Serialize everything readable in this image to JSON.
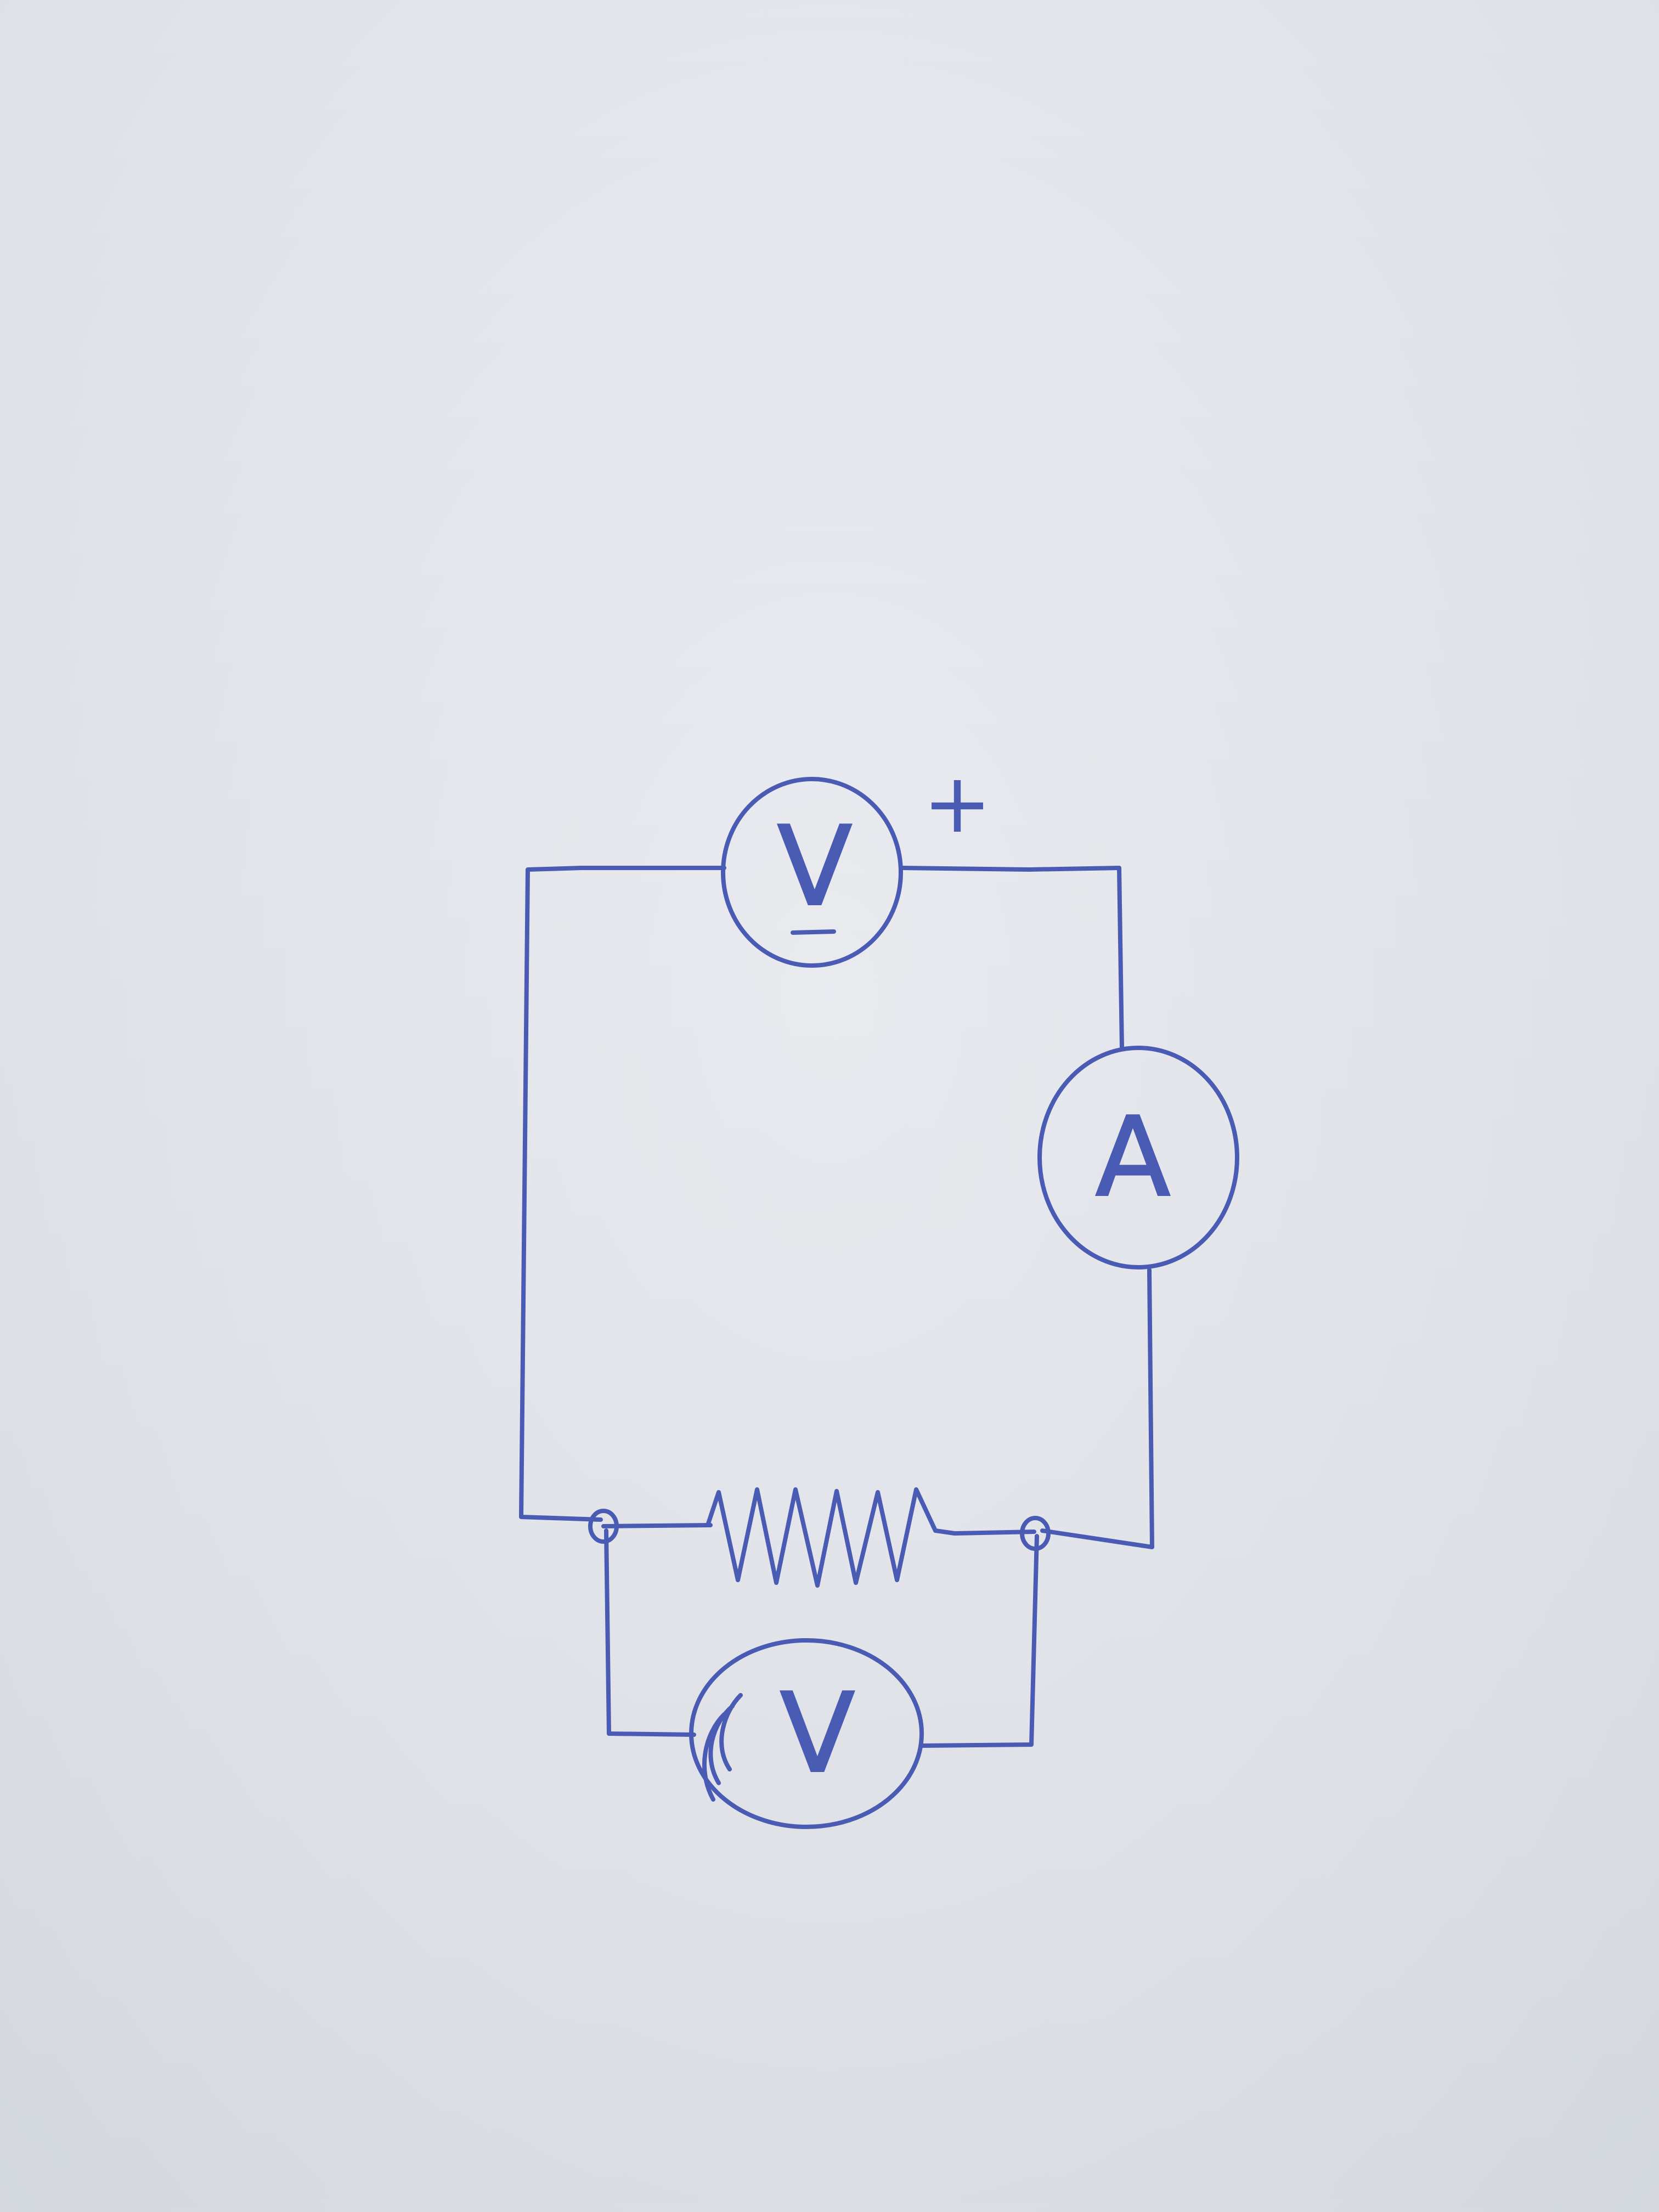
{
  "diagram": {
    "ink_color": "#4a5bb3",
    "paper_color": "#e3e6ec",
    "components": {
      "top_meter": {
        "symbol": "V",
        "type": "voltmeter"
      },
      "top_meter_polarity": "+",
      "right_meter": {
        "symbol": "A",
        "type": "ammeter"
      },
      "bottom_meter": {
        "symbol": "V",
        "type": "voltmeter"
      },
      "resistor": {
        "type": "resistor"
      }
    }
  }
}
